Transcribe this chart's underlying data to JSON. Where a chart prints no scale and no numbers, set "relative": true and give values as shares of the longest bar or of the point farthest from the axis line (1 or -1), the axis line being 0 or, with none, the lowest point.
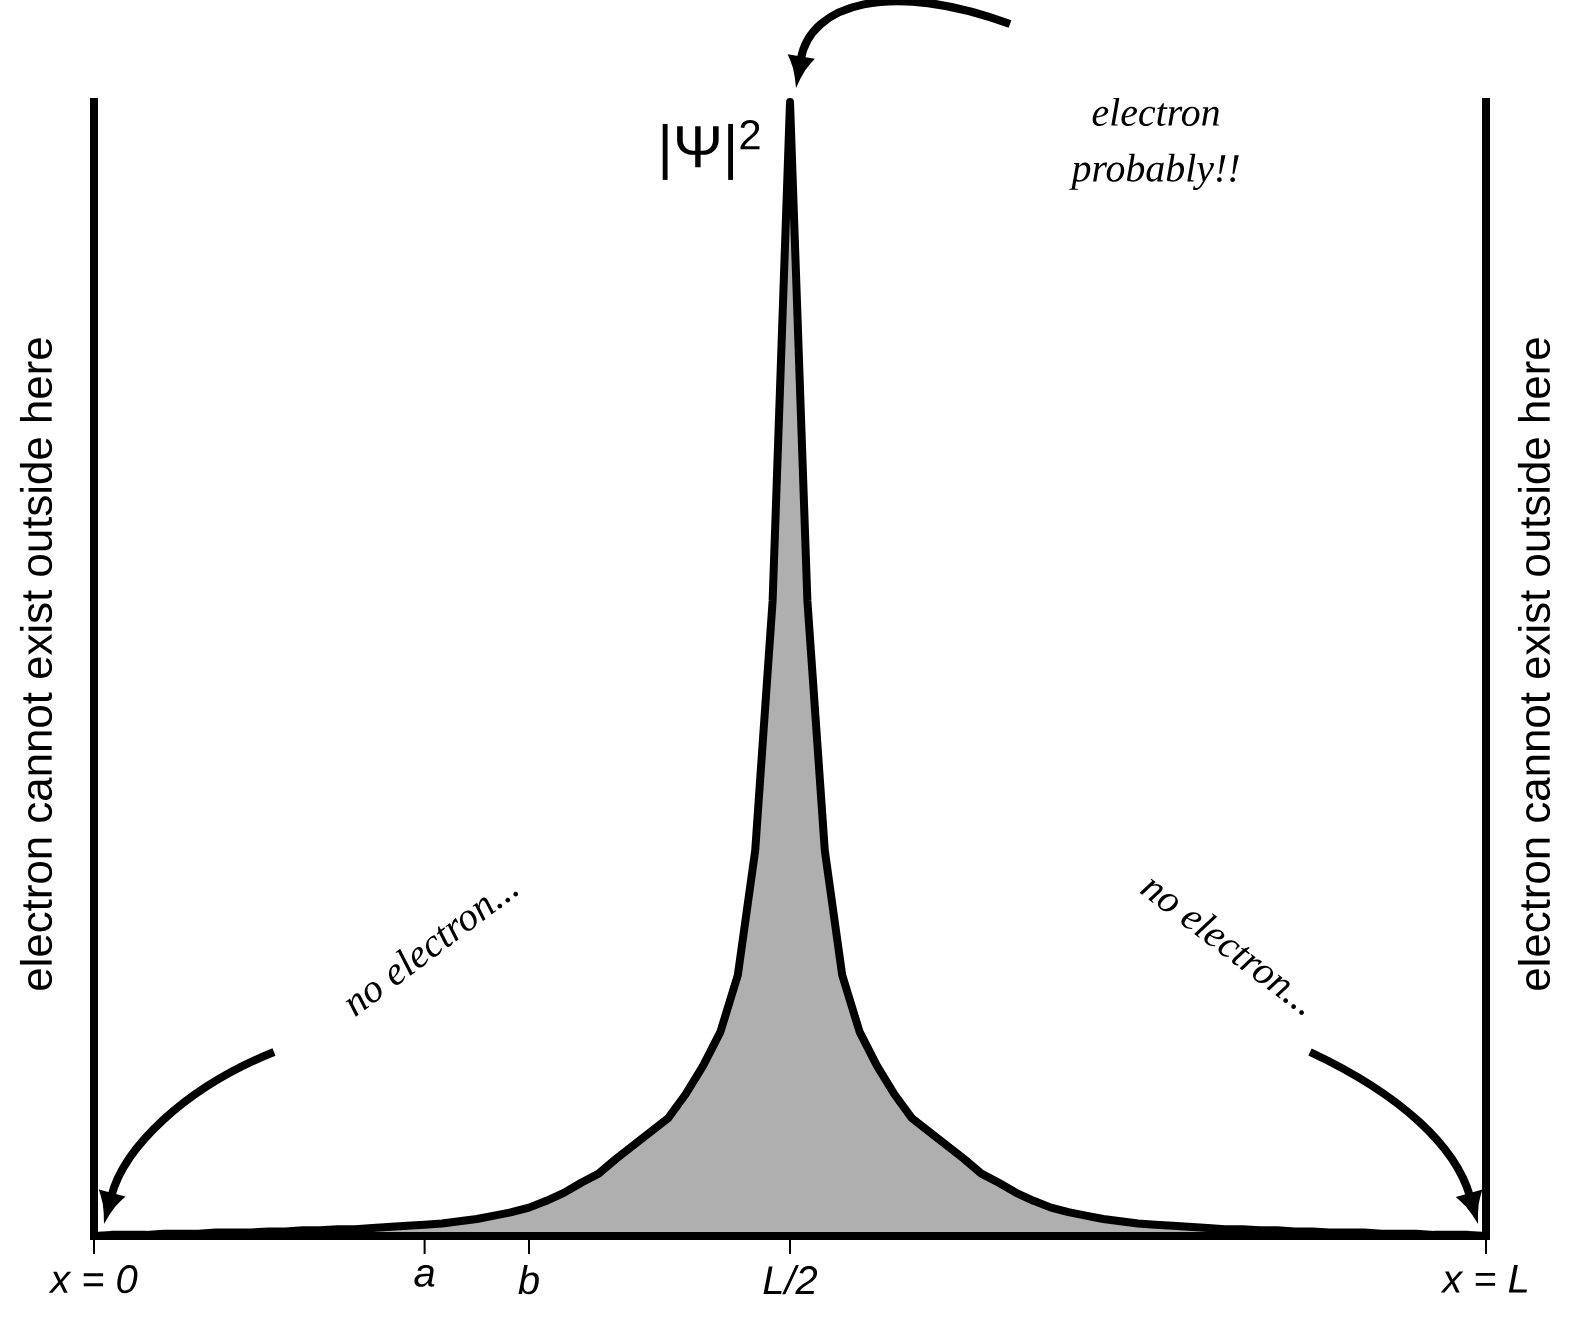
{
  "chart_data": {
    "type": "area",
    "relative": true,
    "categories": [
      "x = 0",
      null,
      null,
      null,
      null,
      null,
      null,
      null,
      null,
      null,
      null,
      null,
      null,
      null,
      null,
      null,
      null,
      null,
      null,
      "a",
      null,
      null,
      null,
      null,
      null,
      "b",
      null,
      null,
      null,
      null,
      null,
      null,
      null,
      null,
      null,
      null,
      null,
      null,
      null,
      null,
      "L/2",
      null,
      null,
      null,
      null,
      null,
      null,
      null,
      null,
      null,
      null,
      null,
      null,
      null,
      null,
      null,
      null,
      null,
      null,
      null,
      null,
      null,
      null,
      null,
      null,
      null,
      null,
      null,
      null,
      null,
      null,
      null,
      null,
      null,
      null,
      null,
      null,
      null,
      null,
      null,
      "x = L"
    ],
    "series": [
      {
        "color": "#000000",
        "values": [
          0,
          0.001,
          0.001,
          0.001,
          0.002,
          0.002,
          0.002,
          0.003,
          0.003,
          0.003,
          0.004,
          0.004,
          0.005,
          0.005,
          0.006,
          0.006,
          0.007,
          0.008,
          0.009,
          0.01,
          0.011,
          0.013,
          0.015,
          0.018,
          0.021,
          0.025,
          0.031,
          0.038,
          0.047,
          0.055,
          0.068,
          0.08,
          0.092,
          0.104,
          0.125,
          0.15,
          0.18,
          0.23,
          0.34,
          0.56,
          1,
          0.56,
          0.34,
          0.23,
          0.18,
          0.15,
          0.125,
          0.104,
          0.092,
          0.08,
          0.068,
          0.055,
          0.047,
          0.038,
          0.031,
          0.025,
          0.021,
          0.018,
          0.015,
          0.013,
          0.011,
          0.01,
          0.009,
          0.008,
          0.007,
          0.006,
          0.006,
          0.005,
          0.005,
          0.004,
          0.004,
          0.003,
          0.003,
          0.003,
          0.002,
          0.002,
          0.002,
          0.001,
          0.001,
          0.001,
          0
        ]
      }
    ],
    "annotations": [
      "|Ψ|$^{2}$",
      "electron probably!!",
      "no electron...",
      "no electron...",
      "electron cannot exist outside here",
      "electron cannot exist outside here"
    ]
  }
}
